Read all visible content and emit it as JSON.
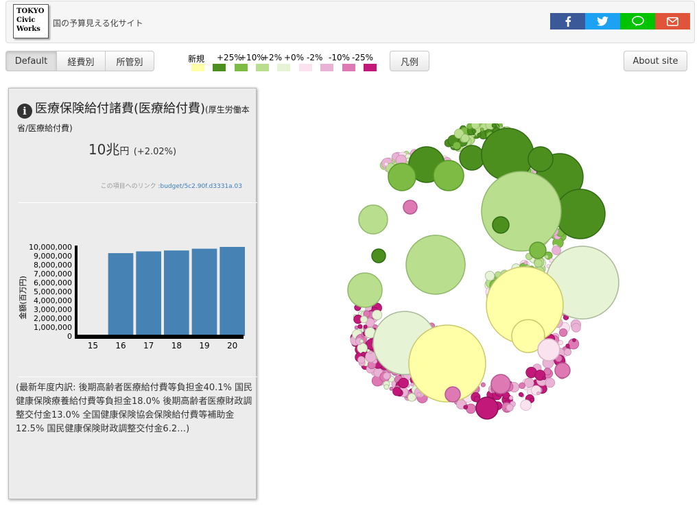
{
  "header": {
    "logo_lines": [
      "TOKYO",
      "Civic",
      "Works"
    ],
    "site_title": "国の予算見える化サイト",
    "share_buttons": [
      {
        "name": "facebook",
        "icon": "facebook-icon",
        "color": "#3b5998"
      },
      {
        "name": "twitter",
        "icon": "twitter-icon",
        "color": "#1da1f2"
      },
      {
        "name": "line",
        "icon": "line-icon",
        "color": "#00c300"
      },
      {
        "name": "mail",
        "icon": "mail-icon",
        "color": "#dd4b39"
      }
    ]
  },
  "toolbar": {
    "view_buttons": [
      "Default",
      "経費別",
      "所管別"
    ],
    "active_view": "Default",
    "legend_button": "凡例",
    "about_button": "About site"
  },
  "color_legend": {
    "labels": [
      "新規",
      "+25%",
      "+10%",
      "+2%",
      "+0%",
      "-2%",
      "-10%",
      "-25%"
    ],
    "swatches": [
      "#ffffa8",
      "#4d8f1f",
      "#7dbb45",
      "#b9df8e",
      "#e6f3d4",
      "#fae2ef",
      "#eab3d5",
      "#de79b4",
      "#c2187a"
    ]
  },
  "detail_panel": {
    "title": "医療保険給付諸費(医療給付費)",
    "subtitle": "(厚生労働本省/医療給付費)",
    "amount": "10兆",
    "amount_unit": "円",
    "change": "(+2.02%)",
    "link_label": "この項目へのリンク",
    "link_text": ":budget/5c2.90f.d3331a.03",
    "description": "(最新年度内訳: 後期高齢者医療給付費等負担金40.1% 国民健康保険療養給付費等負担金18.0% 後期高齢者医療財政調整交付金13.0% 全国健康保険協会保険給付費等補助金12.5% 国民健康保険財政調整交付金6.2…)"
  },
  "chart_data": {
    "type": "bar",
    "categories": [
      "15",
      "16",
      "17",
      "18",
      "19",
      "20"
    ],
    "values": [
      0,
      9300000,
      9500000,
      9600000,
      9800000,
      10000000
    ],
    "ylabel": "金額(百万円)",
    "ylim": [
      0,
      10000000
    ],
    "yticks": [
      "10,000,000",
      "9,000,000",
      "8,000,000",
      "7,000,000",
      "6,000,000",
      "5,000,000",
      "4,000,000",
      "3,000,000",
      "2,000,000",
      "1,000,000",
      "0"
    ],
    "bar_color": "#4682b4"
  }
}
